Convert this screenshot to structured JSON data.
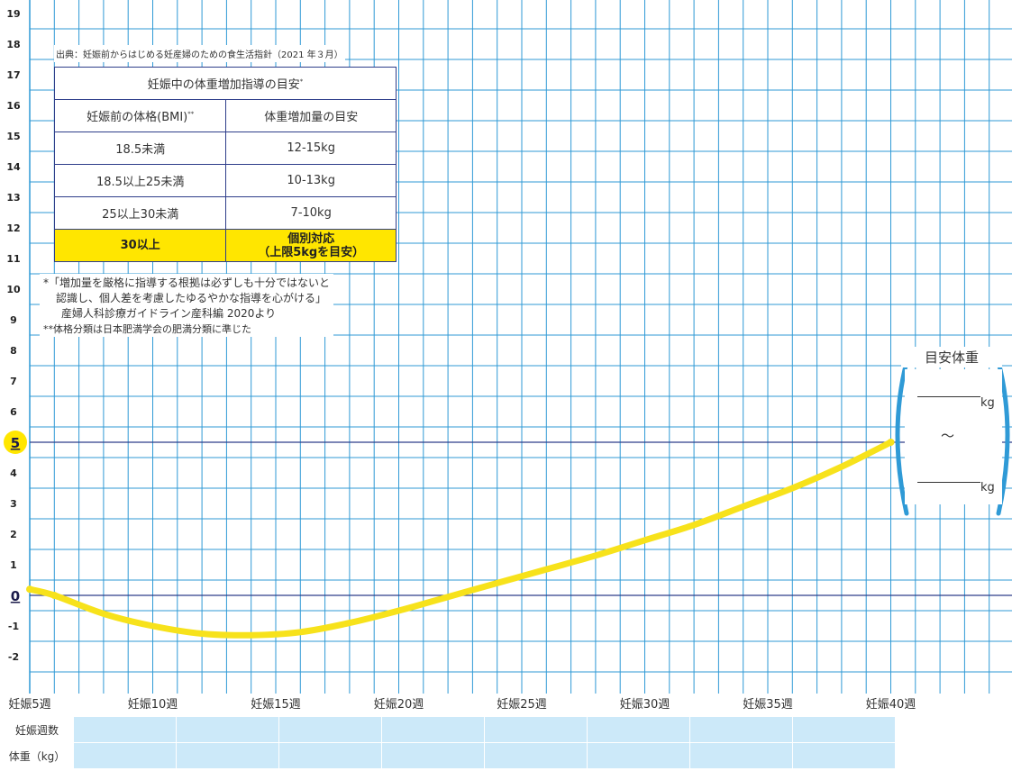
{
  "chart_data": {
    "type": "line",
    "y_ticks": [
      "-2",
      "-1",
      "0",
      "1",
      "2",
      "3",
      "4",
      "5",
      "6",
      "7",
      "8",
      "9",
      "10",
      "11",
      "12",
      "13",
      "14",
      "15",
      "16",
      "17",
      "18",
      "19"
    ],
    "highlight_y_ticks": [
      "0",
      "5"
    ],
    "ylim": [
      -2.5,
      19.5
    ],
    "x_ticks": [
      "妊娠5週",
      "妊娠10週",
      "妊娠15週",
      "妊娠20週",
      "妊娠25週",
      "妊娠30週",
      "妊娠35週",
      "妊娠40週"
    ],
    "x_tick_values": [
      5,
      10,
      15,
      20,
      25,
      30,
      35,
      40
    ],
    "xlim": [
      5,
      44
    ],
    "series": [
      {
        "x": [
          5,
          6,
          8,
          10,
          12,
          14,
          16,
          18,
          20,
          22,
          24,
          26,
          28,
          30,
          32,
          34,
          36,
          38,
          40
        ],
        "y": [
          0.2,
          0,
          -0.6,
          -1.0,
          -1.25,
          -1.3,
          -1.2,
          -0.9,
          -0.5,
          -0.05,
          0.4,
          0.85,
          1.3,
          1.8,
          2.3,
          2.9,
          3.5,
          4.2,
          5.0
        ],
        "color": "#f7e21b"
      }
    ],
    "grid": true
  },
  "source": "出典：妊娠前からはじめる妊産婦のための食生活指針（2021 年３月）",
  "guide_table": {
    "title": "妊娠中の体重増加指導の目安",
    "title_mark": "*",
    "col1_header": "妊娠前の体格(BMI)",
    "col1_mark": "**",
    "col2_header": "体重増加量の目安",
    "rows": [
      {
        "bmi": "18.5未満",
        "gain": "12-15kg"
      },
      {
        "bmi": "18.5以上25未満",
        "gain": "10-13kg"
      },
      {
        "bmi": "25以上30未満",
        "gain": "7-10kg"
      }
    ],
    "highlight_row": {
      "bmi": "30以上",
      "gain_line1": "個別対応",
      "gain_line2": "（上限5kgを目安）"
    }
  },
  "notes": {
    "line1": "*「増加量を厳格に指導する根拠は必ずしも十分ではないと",
    "line2": "認識し、個人差を考慮したゆるやかな指導を心がける」",
    "line3": "産婦人科診療ガイドライン産科編 2020より",
    "line4": "**体格分類は日本肥満学会の肥満分類に準じた"
  },
  "target_box": {
    "title": "目安体重",
    "unit1": "kg",
    "separator": "〜",
    "unit2": "kg"
  },
  "record_table": {
    "row1_label": "妊娠週数",
    "row2_label": "体重（kg）",
    "columns": 8
  },
  "colors": {
    "grid": "#2f9ad6",
    "axis_line": "#2e3d8a",
    "curve": "#f7e21b",
    "highlight": "#ffe600",
    "bracket": "#2f9ad6",
    "record_cell": "#cce9f9"
  }
}
